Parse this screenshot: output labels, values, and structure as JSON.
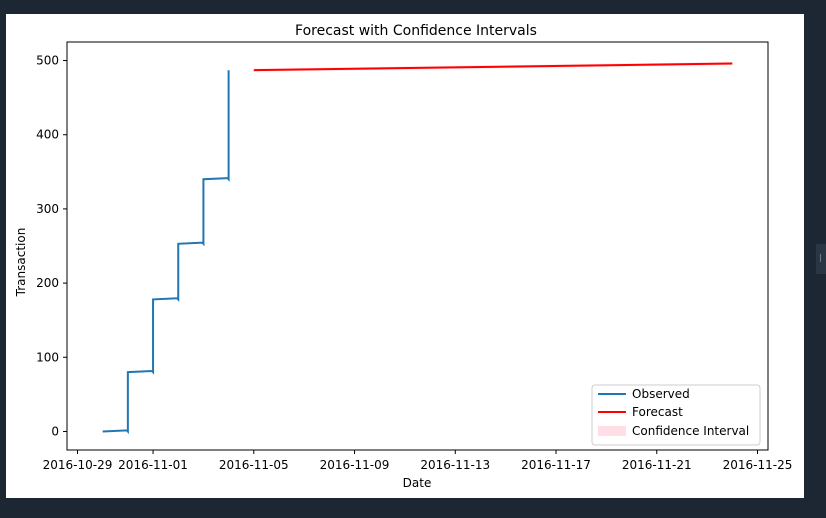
{
  "chart_data": {
    "type": "line",
    "title": "Forecast with Confidence Intervals",
    "xlabel": "Date",
    "ylabel": "Transaction",
    "xlim": [
      "2016-10-28T14:00",
      "2016-11-25T10:00"
    ],
    "ylim": [
      -25,
      525
    ],
    "x_ticks": [
      "2016-10-29",
      "2016-11-01",
      "2016-11-05",
      "2016-11-09",
      "2016-11-13",
      "2016-11-17",
      "2016-11-21",
      "2016-11-25"
    ],
    "y_ticks": [
      0,
      100,
      200,
      300,
      400,
      500
    ],
    "grid": false,
    "legend_position": "lower-right",
    "series": [
      {
        "name": "Observed",
        "color": "#1f77b4",
        "style": "step",
        "x": [
          "2016-10-30",
          "2016-10-31",
          "2016-11-01",
          "2016-11-02",
          "2016-11-03",
          "2016-11-04"
        ],
        "y": [
          0,
          80,
          178,
          253,
          340,
          437
        ],
        "end": {
          "x": "2016-11-04",
          "y": 487
        }
      },
      {
        "name": "Forecast",
        "color": "#ff0000",
        "x": [
          "2016-11-05",
          "2016-11-24"
        ],
        "y": [
          487,
          496
        ]
      },
      {
        "name": "Confidence Interval",
        "color": "#ffc0cb",
        "style": "band",
        "x": [
          "2016-11-05",
          "2016-11-24"
        ],
        "lower": [
          485,
          494
        ],
        "upper": [
          489,
          498
        ]
      }
    ]
  }
}
